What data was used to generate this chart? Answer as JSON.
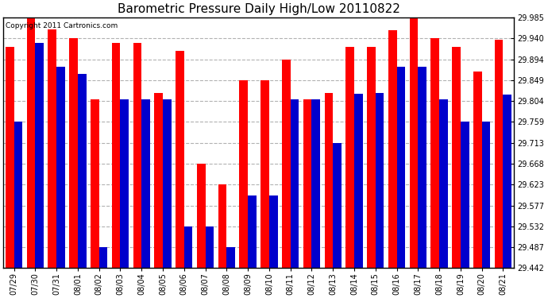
{
  "title": "Barometric Pressure Daily High/Low 20110822",
  "copyright_text": "Copyright 2011 Cartronics.com",
  "dates": [
    "07/29",
    "07/30",
    "07/31",
    "08/01",
    "08/02",
    "08/03",
    "08/04",
    "08/05",
    "08/06",
    "08/07",
    "08/08",
    "08/09",
    "08/10",
    "08/11",
    "08/12",
    "08/13",
    "08/14",
    "08/15",
    "08/16",
    "08/17",
    "08/18",
    "08/19",
    "08/20",
    "08/21"
  ],
  "highs": [
    29.921,
    29.985,
    29.96,
    29.94,
    29.808,
    29.93,
    29.93,
    29.822,
    29.912,
    29.668,
    29.623,
    29.849,
    29.849,
    29.894,
    29.808,
    29.822,
    29.921,
    29.921,
    29.958,
    29.985,
    29.94,
    29.921,
    29.868,
    29.936
  ],
  "lows": [
    29.759,
    29.93,
    29.878,
    29.862,
    29.487,
    29.808,
    29.808,
    29.808,
    29.532,
    29.532,
    29.487,
    29.6,
    29.6,
    29.808,
    29.808,
    29.713,
    29.82,
    29.822,
    29.878,
    29.878,
    29.808,
    29.759,
    29.759,
    29.818
  ],
  "high_color": "#ff0000",
  "low_color": "#0000cc",
  "background_color": "#ffffff",
  "grid_color": "#aaaaaa",
  "ylim_min": 29.442,
  "ylim_max": 29.985,
  "yticks": [
    29.442,
    29.487,
    29.532,
    29.577,
    29.623,
    29.668,
    29.713,
    29.759,
    29.804,
    29.849,
    29.894,
    29.94,
    29.985
  ],
  "bar_width": 0.4,
  "title_fontsize": 11,
  "tick_fontsize": 7,
  "copyright_fontsize": 6.5
}
